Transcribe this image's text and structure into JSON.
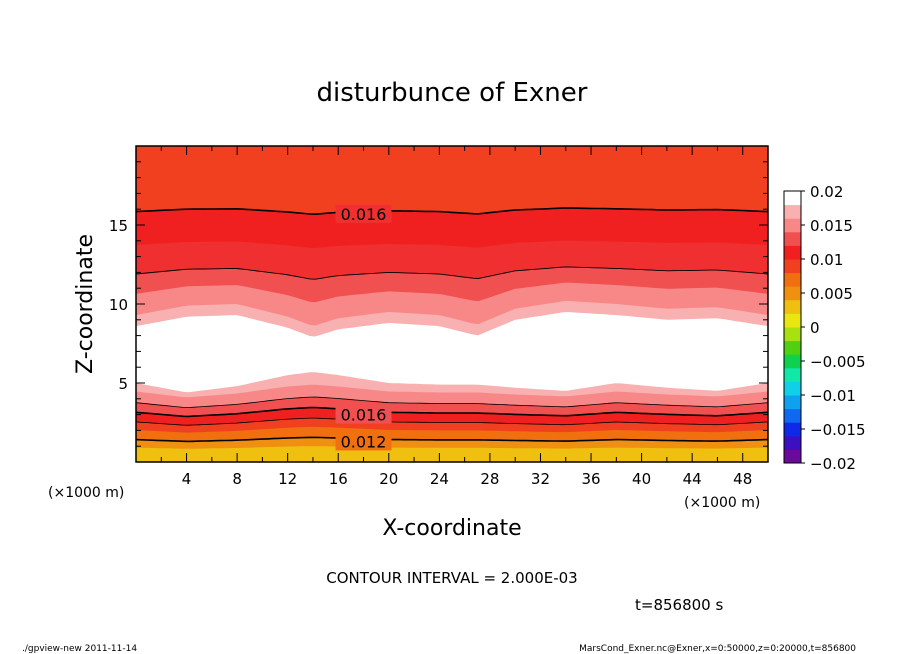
{
  "chart_data": {
    "type": "contour",
    "title": "disturbunce of Exner",
    "xlabel": "X-coordinate",
    "ylabel": "Z-coordinate",
    "x_unit": "(×1000 m)",
    "y_unit": "(×1000 m)",
    "xlim": [
      0,
      50
    ],
    "ylim": [
      0,
      20
    ],
    "x_ticks": [
      4,
      8,
      12,
      16,
      20,
      24,
      28,
      32,
      36,
      40,
      44,
      48
    ],
    "y_ticks": [
      5,
      10,
      15
    ],
    "contour_interval_text": "CONTOUR INTERVAL = 2.000E-03",
    "time_text": "t=856800 s",
    "colorbar": {
      "ticks": [
        "0.02",
        "0.015",
        "0.01",
        "0.005",
        "0",
        "−0.005",
        "−0.01",
        "−0.015",
        "−0.02"
      ],
      "colors": [
        "#6a0a9a",
        "#3c10c0",
        "#1028e8",
        "#1068f0",
        "#10a0f0",
        "#10d0e8",
        "#10e8a8",
        "#10d050",
        "#50d010",
        "#a8e010",
        "#e8e810",
        "#f0c010",
        "#f09010",
        "#f07010",
        "#f04020",
        "#f02020",
        "#f05050",
        "#f88888",
        "#f8b0b0",
        "#ffffff"
      ]
    },
    "contour_labels": [
      {
        "text": "0.016",
        "x": 18,
        "z": 15.7
      },
      {
        "text": "0.016",
        "x": 18,
        "z": 3.0
      },
      {
        "text": "0.012",
        "x": 18,
        "z": 1.3
      }
    ],
    "upper_bands": {
      "x": [
        0,
        4,
        8,
        12,
        14,
        16,
        20,
        24,
        27,
        30,
        34,
        38,
        42,
        46,
        50
      ],
      "boundaries": [
        {
          "base": 9.5,
          "amp": 1.0,
          "shift": 0,
          "color": "#f8b0b0"
        },
        {
          "base": 10.8,
          "amp": 0.8,
          "shift": 0,
          "color": "#f88888"
        },
        {
          "base": 12.0,
          "amp": 0.5,
          "shift": 0,
          "color": "#f05050"
        },
        {
          "base": 13.8,
          "amp": 0.3,
          "shift": 0,
          "color": "#f03030"
        },
        {
          "base": 15.9,
          "amp": 0.25,
          "shift": 0,
          "color": "#f02020"
        },
        {
          "base": 17.7,
          "amp": 0.1,
          "shift": 0,
          "color": "#f04020"
        }
      ],
      "white_bottom": [
        8.6,
        9.2,
        9.3,
        8.5,
        7.9,
        8.4,
        8.8,
        8.6,
        8.0,
        9.0,
        9.5,
        9.3,
        9.0,
        9.1,
        8.6
      ]
    },
    "lower_bands": {
      "x": [
        0,
        4,
        8,
        12,
        14,
        16,
        20,
        24,
        27,
        30,
        34,
        38,
        42,
        46,
        50
      ],
      "white_top": [
        5.0,
        4.4,
        4.8,
        5.5,
        5.7,
        5.5,
        5.0,
        4.9,
        4.9,
        4.7,
        4.5,
        5.0,
        4.7,
        4.5,
        5.0
      ],
      "bands": [
        {
          "level": 4.4,
          "color": "#f8b0b0"
        },
        {
          "level": 3.7,
          "color": "#f88888"
        },
        {
          "level": 3.1,
          "color": "#f05050"
        },
        {
          "level": 2.5,
          "color": "#f02020"
        },
        {
          "level": 2.0,
          "color": "#f04020"
        },
        {
          "level": 1.4,
          "color": "#f07010"
        },
        {
          "level": 0.9,
          "color": "#f09010"
        },
        {
          "level": 0.4,
          "color": "#f0c010"
        }
      ]
    }
  },
  "footer": {
    "left": "./gpview-new  2011-11-14",
    "right": "MarsCond_Exner.nc@Exner,x=0:50000,z=0:20000,t=856800"
  }
}
